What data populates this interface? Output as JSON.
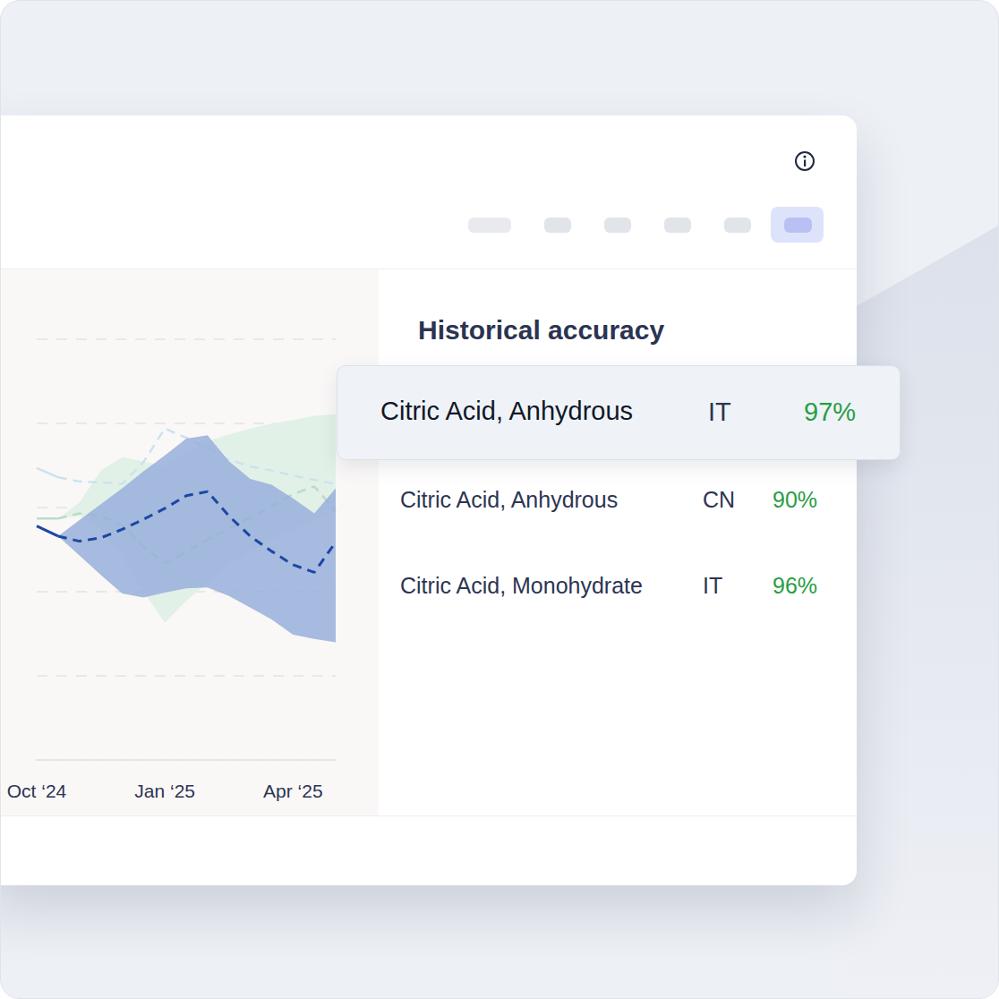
{
  "chart_data": {
    "type": "line",
    "categories": [
      "Oct ‘24",
      null,
      null,
      null,
      null,
      null,
      "Jan ‘25",
      null,
      null,
      null,
      null,
      null,
      "Apr ‘25",
      null,
      null
    ],
    "ylim": [
      0,
      5
    ],
    "yticks": [
      0,
      1,
      2,
      3,
      4,
      5
    ],
    "grid": true,
    "tick_labels": "x",
    "series": [
      {
        "type": "band",
        "color": "#e2f1e7",
        "upper": [
          null,
          2.87,
          3.06,
          3.44,
          3.6,
          3.55,
          3.49,
          3.65,
          3.79,
          3.87,
          3.94,
          4.0,
          4.04,
          4.09,
          4.11
        ],
        "lower": [
          null,
          2.87,
          2.9,
          2.74,
          2.43,
          2.0,
          1.63,
          1.89,
          2.11,
          2.32,
          2.48,
          2.62,
          2.74,
          2.85,
          2.96
        ]
      },
      {
        "type": "line",
        "color": "#cde2ee",
        "line_style": "solid",
        "values": [
          3.47,
          3.36,
          null,
          null,
          null,
          null,
          null,
          null,
          null,
          null,
          null,
          null,
          null,
          null,
          null
        ]
      },
      {
        "type": "line",
        "color": "#cde2ee",
        "line_style": "dashed",
        "values": [
          null,
          3.36,
          3.31,
          3.3,
          3.28,
          3.54,
          3.94,
          3.83,
          3.7,
          3.57,
          3.49,
          3.44,
          3.38,
          3.33,
          3.28
        ]
      },
      {
        "type": "line",
        "color": "#b9dcc9",
        "line_style": "solid",
        "values": [
          2.87,
          2.87,
          null,
          null,
          null,
          null,
          null,
          null,
          null,
          null,
          null,
          null,
          null,
          null,
          null
        ]
      },
      {
        "type": "line",
        "color": "#b9dcc9",
        "line_style": "dashed",
        "values": [
          null,
          2.87,
          2.93,
          2.9,
          2.79,
          2.53,
          2.34,
          2.47,
          2.62,
          2.75,
          2.88,
          3.01,
          3.16,
          3.25,
          2.96
        ]
      },
      {
        "type": "band",
        "color": "#98afdb",
        "upper": [
          null,
          2.66,
          2.85,
          3.04,
          3.23,
          3.43,
          3.62,
          3.82,
          3.86,
          3.55,
          3.34,
          3.27,
          3.11,
          2.93,
          3.23
        ],
        "lower": [
          null,
          2.66,
          2.43,
          2.2,
          1.98,
          1.93,
          1.99,
          2.04,
          2.05,
          1.95,
          1.81,
          1.67,
          1.49,
          1.44,
          1.4
        ]
      },
      {
        "type": "line",
        "color": "#1a48a4",
        "line_style": "solid",
        "values": [
          2.78,
          2.66,
          null,
          null,
          null,
          null,
          null,
          null,
          null,
          null,
          null,
          null,
          null,
          null,
          null
        ]
      },
      {
        "type": "line",
        "color": "#1a48a4",
        "line_style": "dashed",
        "values": [
          null,
          2.66,
          2.6,
          2.64,
          2.74,
          2.86,
          2.99,
          3.14,
          3.19,
          2.9,
          2.66,
          2.48,
          2.32,
          2.23,
          2.59
        ]
      }
    ]
  },
  "panel": {
    "title": "Historical accuracy",
    "rows": [
      {
        "product": "Citric Acid, Anhydrous",
        "country": "IT",
        "accuracy": "97%"
      },
      {
        "product": "Citric Acid, Anhydrous",
        "country": "CN",
        "accuracy": "90%"
      },
      {
        "product": "Citric Acid, Monohydrate",
        "country": "IT",
        "accuracy": "96%"
      }
    ]
  }
}
